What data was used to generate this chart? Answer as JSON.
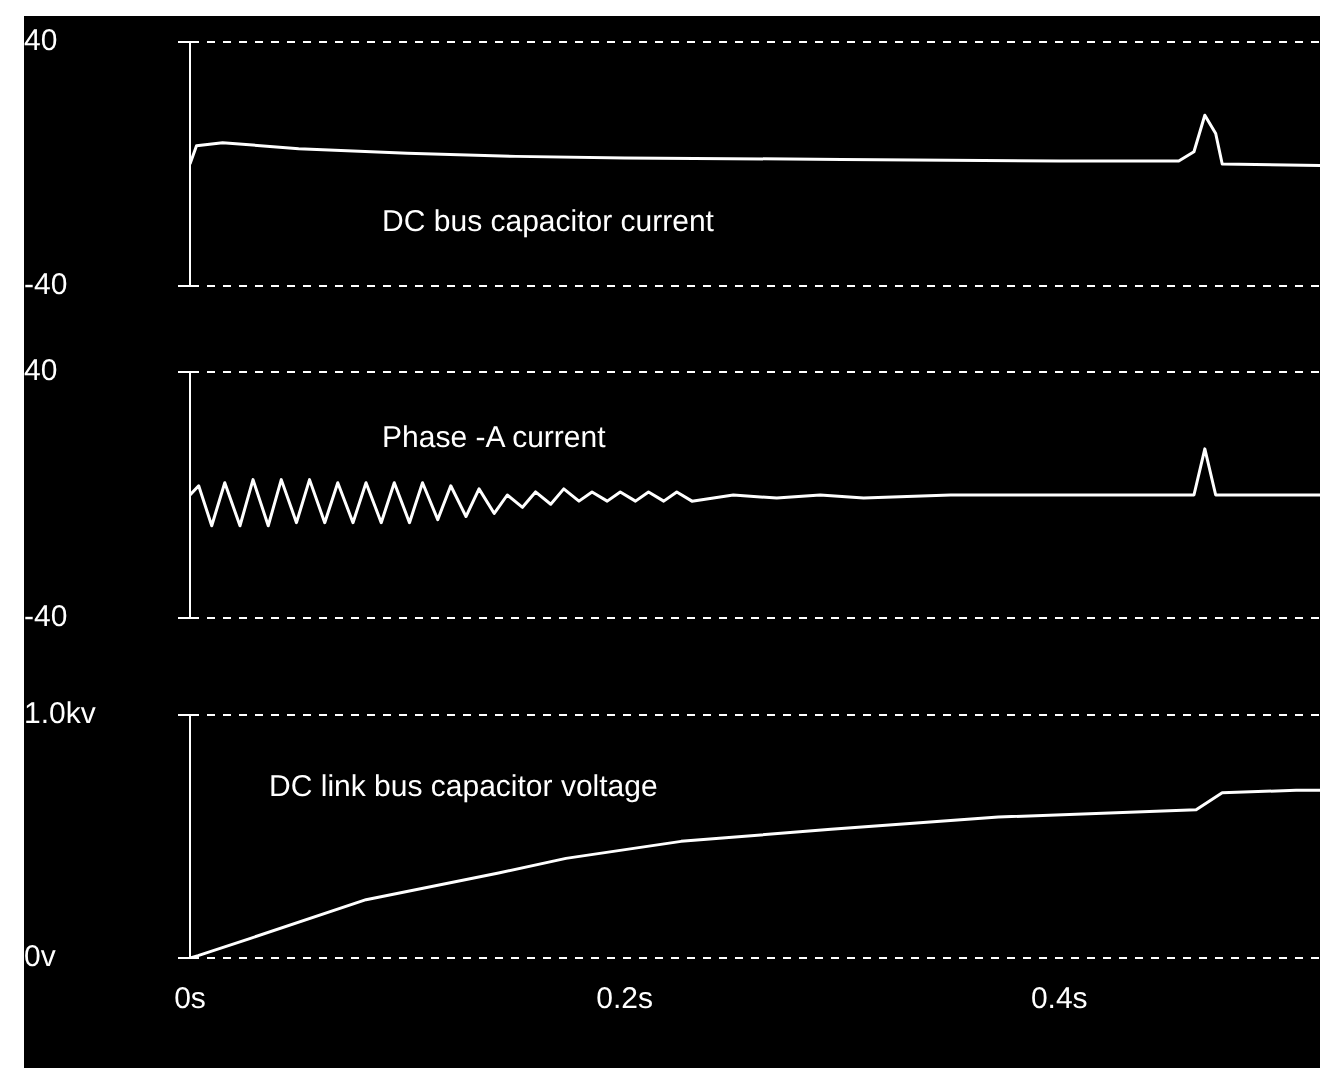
{
  "chart_data": [
    {
      "type": "line",
      "title": "DC bus capacitor current",
      "color": "#ffffff",
      "marker": "none",
      "grid": "y",
      "tick_labels": "y",
      "xlim": [
        0,
        0.52
      ],
      "ylim": [
        -40,
        40
      ],
      "yticks": [
        {
          "value": -40,
          "label": "-40"
        },
        {
          "value": 40,
          "label": "40"
        }
      ],
      "x": [
        0,
        0.003,
        0.015,
        0.05,
        0.1,
        0.15,
        0.2,
        0.3,
        0.4,
        0.455,
        0.462,
        0.467,
        0.472,
        0.475,
        0.52
      ],
      "values": [
        0,
        6,
        7,
        5,
        3.5,
        2.5,
        2,
        1.5,
        1,
        1,
        4,
        16,
        10,
        0,
        -0.5
      ]
    },
    {
      "type": "line",
      "title": "Phase -A current",
      "color": "#ffffff",
      "marker": "none",
      "grid": "y",
      "tick_labels": "y",
      "xlim": [
        0,
        0.52
      ],
      "ylim": [
        -40,
        40
      ],
      "yticks": [
        {
          "value": -40,
          "label": "-40"
        },
        {
          "value": 40,
          "label": "40"
        }
      ],
      "x": [
        0,
        0.004,
        0.01,
        0.016,
        0.023,
        0.029,
        0.036,
        0.042,
        0.049,
        0.055,
        0.062,
        0.068,
        0.075,
        0.081,
        0.088,
        0.094,
        0.101,
        0.107,
        0.114,
        0.12,
        0.127,
        0.133,
        0.14,
        0.146,
        0.153,
        0.159,
        0.166,
        0.172,
        0.179,
        0.185,
        0.192,
        0.198,
        0.205,
        0.211,
        0.218,
        0.224,
        0.231,
        0.25,
        0.27,
        0.29,
        0.31,
        0.35,
        0.4,
        0.462,
        0.467,
        0.472,
        0.52
      ],
      "values": [
        0,
        3,
        -10,
        4,
        -10,
        5,
        -10,
        5,
        -9,
        5,
        -9,
        4,
        -9,
        4,
        -9,
        4,
        -9,
        4,
        -8,
        3,
        -7,
        2,
        -6,
        0,
        -4,
        1,
        -3,
        2,
        -2,
        1,
        -2,
        1,
        -2,
        1,
        -2,
        1,
        -2,
        0,
        -1,
        0,
        -1,
        0,
        0,
        0,
        15,
        0,
        0
      ]
    },
    {
      "type": "line",
      "title": "DC link bus capacitor voltage",
      "color": "#ffffff",
      "marker": "none",
      "grid": "y",
      "xlim": [
        0,
        0.52
      ],
      "xticks": [
        {
          "value": 0,
          "label": "0s"
        },
        {
          "value": 0.2,
          "label": "0.2s"
        },
        {
          "value": 0.4,
          "label": "0.4s"
        }
      ],
      "ylim": [
        0,
        1
      ],
      "yticks": [
        {
          "value": 0,
          "label": "0v"
        },
        {
          "value": 1,
          "label": "1.0kv"
        }
      ],
      "x": [
        0,
        0.0037,
        0.0275,
        0.081,
        0.142,
        0.173,
        0.226,
        0.295,
        0.372,
        0.463,
        0.475,
        0.509,
        0.52
      ],
      "values": [
        0,
        0.01,
        0.08,
        0.24,
        0.35,
        0.41,
        0.48,
        0.53,
        0.58,
        0.61,
        0.68,
        0.69,
        0.69
      ]
    }
  ]
}
